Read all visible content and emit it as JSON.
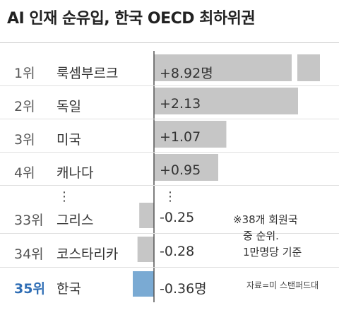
{
  "chart_data": {
    "type": "bar",
    "title": "AI 인재 순유입, 한국 OECD 최하위권",
    "rows": [
      {
        "rank": "1위",
        "country": "룩셈부르크",
        "value": 8.92,
        "label": "+8.92명",
        "highlight": false
      },
      {
        "rank": "2위",
        "country": "독일",
        "value": 2.13,
        "label": "+2.13",
        "highlight": false
      },
      {
        "rank": "3위",
        "country": "미국",
        "value": 1.07,
        "label": "+1.07",
        "highlight": false
      },
      {
        "rank": "4위",
        "country": "캐나다",
        "value": 0.95,
        "label": "+0.95",
        "highlight": false
      },
      {
        "rank": "33위",
        "country": "그리스",
        "value": -0.25,
        "label": "-0.25",
        "highlight": false
      },
      {
        "rank": "34위",
        "country": "코스타리카",
        "value": -0.28,
        "label": "-0.28",
        "highlight": false
      },
      {
        "rank": "35위",
        "country": "한국",
        "value": -0.36,
        "label": "-0.36명",
        "highlight": true
      }
    ],
    "axis_break": true,
    "ellipsis": "⋮",
    "note": [
      "※38개 회원국",
      "중 순위.",
      "1만명당 기준"
    ],
    "source": "자료=미 스탠퍼드대",
    "colors": {
      "bar": "#c6c6c6",
      "highlight": "#7aaad3",
      "axis": "#555555",
      "highlight_text": "#2f6eb5"
    }
  }
}
